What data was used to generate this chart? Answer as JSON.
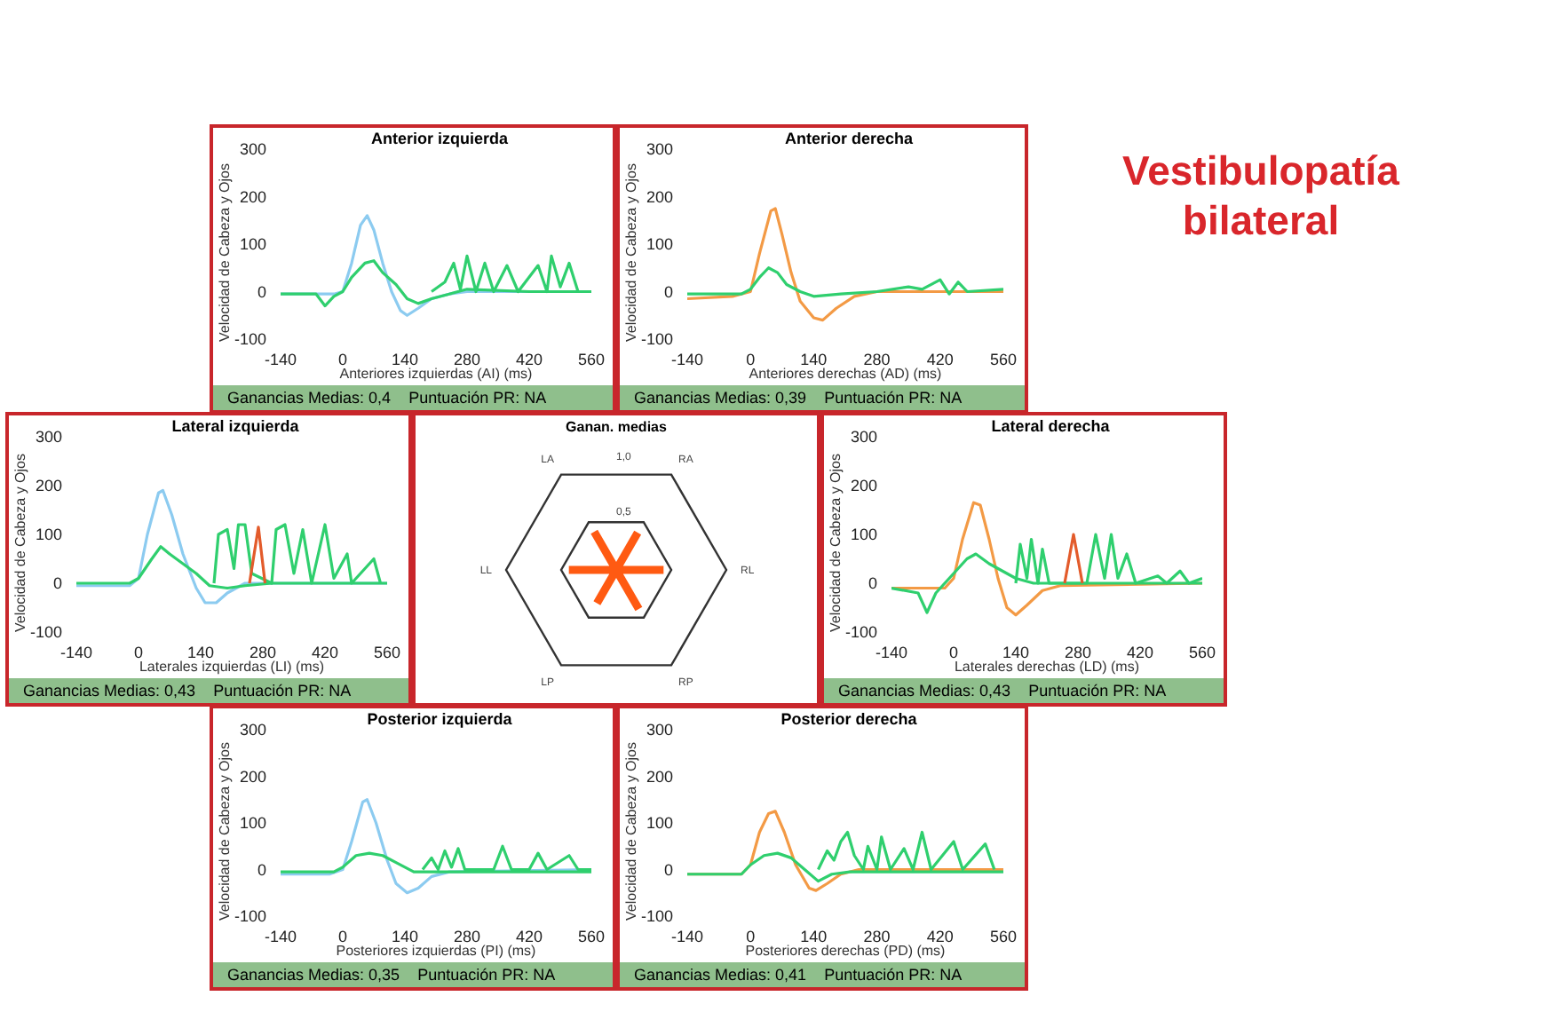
{
  "chart_data": [
    {
      "type": "line",
      "title": "Anterior izquierda",
      "xlabel": "Anteriores izquierdas (AI) (ms)",
      "ylabel": "Velocidad de Cabeza y Ojos",
      "xlim": [
        -140,
        560
      ],
      "xticks": [
        -140,
        0,
        140,
        280,
        420,
        560
      ],
      "ylim": [
        -100,
        300
      ],
      "yticks": [
        -100,
        0,
        100,
        200,
        300
      ],
      "annotations": [
        "Ganancias Medias: 0,4",
        "Puntuación PR: NA"
      ],
      "series": [
        {
          "color": "#8ccbf0",
          "x": [
            -140,
            -20,
            0,
            20,
            40,
            55,
            70,
            90,
            110,
            130,
            145,
            170,
            200,
            240,
            280,
            560
          ],
          "values": [
            -5,
            -5,
            0,
            60,
            140,
            160,
            130,
            60,
            0,
            -40,
            -50,
            -35,
            -15,
            -5,
            0,
            0
          ]
        },
        {
          "color": "#2fcf6e",
          "x": [
            -140,
            -60,
            -40,
            -20,
            0,
            20,
            50,
            70,
            90,
            120,
            145,
            170,
            200,
            240,
            280,
            420,
            560
          ],
          "values": [
            -5,
            -5,
            -30,
            -10,
            0,
            30,
            60,
            65,
            40,
            15,
            -15,
            -25,
            -15,
            -5,
            5,
            0,
            0
          ]
        },
        {
          "color": "#2fcf6e",
          "x": [
            200,
            230,
            250,
            265,
            280,
            300,
            320,
            340,
            370,
            395,
            440,
            460,
            470,
            490,
            510,
            530,
            560
          ],
          "values": [
            0,
            20,
            60,
            5,
            75,
            0,
            60,
            0,
            55,
            0,
            55,
            0,
            75,
            10,
            60,
            0,
            0
          ]
        }
      ]
    },
    {
      "type": "line",
      "title": "Anterior derecha",
      "xlabel": "Anteriores derechas (AD) (ms)",
      "ylabel": "Velocidad de Cabeza y Ojos",
      "xlim": [
        -140,
        560
      ],
      "xticks": [
        -140,
        0,
        140,
        280,
        420,
        560
      ],
      "ylim": [
        -100,
        300
      ],
      "yticks": [
        -100,
        0,
        100,
        200,
        300
      ],
      "annotations": [
        "Ganancias Medias: 0,39",
        "Puntuación PR: NA"
      ],
      "series": [
        {
          "color": "#f39a45",
          "x": [
            -140,
            -40,
            0,
            20,
            45,
            55,
            70,
            90,
            110,
            140,
            160,
            190,
            230,
            280,
            560
          ],
          "values": [
            -15,
            -10,
            0,
            80,
            170,
            175,
            120,
            40,
            -20,
            -55,
            -60,
            -35,
            -10,
            0,
            0
          ]
        },
        {
          "color": "#2fcf6e",
          "x": [
            -140,
            -20,
            0,
            20,
            40,
            60,
            80,
            110,
            140,
            200,
            280,
            350,
            380,
            420,
            440,
            460,
            480,
            560
          ],
          "values": [
            -5,
            -5,
            5,
            30,
            50,
            40,
            15,
            0,
            -10,
            -5,
            0,
            10,
            5,
            25,
            -5,
            20,
            0,
            5
          ]
        }
      ]
    },
    {
      "type": "other",
      "title": "Vestibulopatía bilateral"
    },
    {
      "type": "line",
      "title": "Lateral izquierda",
      "xlabel": "Laterales izquierdas (LI) (ms)",
      "ylabel": "Velocidad de Cabeza y Ojos",
      "xlim": [
        -140,
        560
      ],
      "xticks": [
        -140,
        0,
        140,
        280,
        420,
        560
      ],
      "ylim": [
        -100,
        300
      ],
      "yticks": [
        -100,
        0,
        100,
        200,
        300
      ],
      "annotations": [
        "Ganancias Medias: 0,43",
        "Puntuación PR: NA"
      ],
      "series": [
        {
          "color": "#8ccbf0",
          "x": [
            -140,
            -20,
            0,
            20,
            45,
            55,
            75,
            100,
            130,
            150,
            175,
            200,
            240,
            560
          ],
          "values": [
            -5,
            -5,
            10,
            100,
            185,
            190,
            140,
            60,
            -10,
            -40,
            -40,
            -20,
            0,
            0
          ]
        },
        {
          "color": "#2fcf6e",
          "x": [
            -140,
            -20,
            0,
            30,
            50,
            70,
            100,
            130,
            160,
            200,
            240,
            300,
            560
          ],
          "values": [
            0,
            0,
            10,
            50,
            75,
            60,
            40,
            20,
            -5,
            -10,
            -5,
            0,
            0
          ]
        },
        {
          "color": "#2fcf6e",
          "x": [
            170,
            180,
            200,
            215,
            225,
            240,
            255,
            300,
            310,
            330,
            350,
            370,
            390,
            420,
            440,
            470,
            480,
            530,
            545
          ],
          "values": [
            0,
            100,
            110,
            30,
            120,
            120,
            20,
            0,
            110,
            120,
            20,
            110,
            0,
            120,
            10,
            60,
            0,
            50,
            0
          ]
        },
        {
          "color": "#e35b2b",
          "x": [
            250,
            270,
            285
          ],
          "values": [
            0,
            115,
            0
          ]
        }
      ]
    },
    {
      "type": "radar",
      "title": "Ganan. medias",
      "categories": [
        "RA",
        "RL",
        "RP",
        "LP",
        "LL",
        "LA"
      ],
      "ylim": [
        0,
        1
      ],
      "yticks": [
        {
          "value": 0.5,
          "label": "0,5"
        },
        {
          "value": 1,
          "label": "1,0"
        }
      ],
      "series": [
        {
          "color": "#ff5a12",
          "values": [
            0.39,
            0.43,
            0.41,
            0.35,
            0.43,
            0.4
          ]
        }
      ]
    },
    {
      "type": "line",
      "title": "Lateral derecha",
      "xlabel": "Laterales derechas (LD) (ms)",
      "ylabel": "Velocidad de Cabeza y Ojos",
      "xlim": [
        -140,
        560
      ],
      "xticks": [
        -140,
        0,
        140,
        280,
        420,
        560
      ],
      "ylim": [
        -100,
        300
      ],
      "yticks": [
        -100,
        0,
        100,
        200,
        300
      ],
      "annotations": [
        "Ganancias Medias: 0,43",
        "Puntuación PR: NA"
      ],
      "series": [
        {
          "color": "#f39a45",
          "x": [
            -140,
            -20,
            0,
            20,
            45,
            60,
            80,
            100,
            120,
            140,
            165,
            200,
            240,
            560
          ],
          "values": [
            -10,
            -10,
            10,
            90,
            165,
            160,
            90,
            10,
            -50,
            -65,
            -45,
            -15,
            -5,
            0
          ]
        },
        {
          "color": "#2fcf6e",
          "x": [
            -140,
            -80,
            -60,
            -40,
            0,
            30,
            50,
            80,
            110,
            140,
            180,
            560
          ],
          "values": [
            -10,
            -20,
            -60,
            -20,
            20,
            50,
            60,
            40,
            25,
            10,
            0,
            0
          ]
        },
        {
          "color": "#2fcf6e",
          "x": [
            140,
            150,
            165,
            175,
            190,
            200,
            215,
            300,
            320,
            340,
            355,
            370,
            390,
            410,
            460,
            480,
            510,
            530,
            560
          ],
          "values": [
            0,
            80,
            10,
            90,
            0,
            70,
            0,
            0,
            100,
            10,
            100,
            10,
            60,
            0,
            15,
            0,
            25,
            0,
            10
          ]
        },
        {
          "color": "#e35b2b",
          "x": [
            250,
            270,
            290
          ],
          "values": [
            0,
            100,
            0
          ]
        }
      ]
    },
    {
      "type": "line",
      "title": "Posterior izquierda",
      "xlabel": "Posteriores izquierdas (PI) (ms)",
      "ylabel": "Velocidad de Cabeza y Ojos",
      "xlim": [
        -140,
        560
      ],
      "xticks": [
        -140,
        0,
        140,
        280,
        420,
        560
      ],
      "ylim": [
        -100,
        300
      ],
      "yticks": [
        -100,
        0,
        100,
        200,
        300
      ],
      "annotations": [
        "Ganancias Medias: 0,35",
        "Puntuación PR: NA"
      ],
      "series": [
        {
          "color": "#8ccbf0",
          "x": [
            -140,
            -30,
            0,
            20,
            45,
            55,
            75,
            100,
            120,
            145,
            170,
            200,
            240,
            560
          ],
          "values": [
            -10,
            -10,
            0,
            60,
            145,
            150,
            100,
            20,
            -30,
            -50,
            -40,
            -15,
            -5,
            0
          ]
        },
        {
          "color": "#2fcf6e",
          "x": [
            -140,
            -20,
            0,
            30,
            60,
            90,
            120,
            160,
            200,
            560
          ],
          "values": [
            -5,
            -5,
            5,
            30,
            35,
            30,
            15,
            -5,
            -5,
            -5
          ]
        },
        {
          "color": "#2fcf6e",
          "x": [
            180,
            200,
            215,
            230,
            245,
            260,
            275,
            340,
            360,
            380,
            420,
            440,
            460,
            510,
            530,
            560
          ],
          "values": [
            0,
            25,
            0,
            40,
            5,
            45,
            0,
            0,
            50,
            0,
            0,
            35,
            0,
            30,
            0,
            0
          ]
        }
      ]
    },
    {
      "type": "line",
      "title": "Posterior derecha",
      "xlabel": "Posteriores derechas (PD) (ms)",
      "ylabel": "Velocidad de Cabeza y Ojos",
      "xlim": [
        -140,
        560
      ],
      "xticks": [
        -140,
        0,
        140,
        280,
        420,
        560
      ],
      "ylim": [
        -100,
        300
      ],
      "yticks": [
        -100,
        0,
        100,
        200,
        300
      ],
      "annotations": [
        "Ganancias Medias: 0,41",
        "Puntuación PR: NA"
      ],
      "series": [
        {
          "color": "#f39a45",
          "x": [
            -140,
            -20,
            0,
            20,
            40,
            55,
            75,
            100,
            130,
            145,
            170,
            200,
            240,
            560
          ],
          "values": [
            -10,
            -10,
            10,
            80,
            120,
            125,
            80,
            10,
            -40,
            -45,
            -30,
            -10,
            0,
            0
          ]
        },
        {
          "color": "#2fcf6e",
          "x": [
            -140,
            -20,
            0,
            30,
            60,
            90,
            120,
            150,
            180,
            220,
            560
          ],
          "values": [
            -10,
            -10,
            10,
            30,
            35,
            25,
            0,
            -25,
            -10,
            -5,
            -5
          ]
        },
        {
          "color": "#2fcf6e",
          "x": [
            150,
            170,
            185,
            200,
            215,
            230,
            250,
            260,
            280,
            290,
            310,
            340,
            360,
            380,
            400,
            450,
            470,
            520,
            540
          ],
          "values": [
            0,
            40,
            20,
            60,
            80,
            30,
            0,
            50,
            0,
            70,
            0,
            45,
            0,
            80,
            0,
            60,
            0,
            55,
            0
          ]
        }
      ]
    }
  ]
}
